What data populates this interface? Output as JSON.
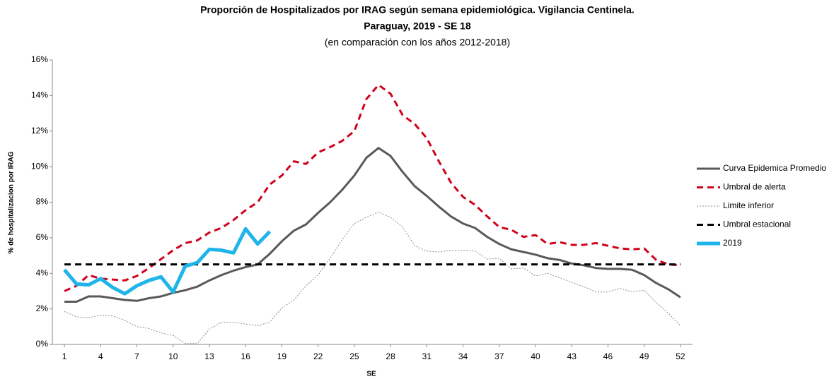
{
  "chart_data": {
    "type": "line",
    "title": "Proporción de Hospitalizados por IRAG según semana epidemiológica. Vigilancia Centinela.",
    "subtitle": "Paraguay,  2019 - SE 18",
    "note": "(en comparación con los años 2012-2018)",
    "x_label": "SE",
    "y_label": "% de hospitalizacion por IRAG",
    "x": [
      1,
      2,
      3,
      4,
      5,
      6,
      7,
      8,
      9,
      10,
      11,
      12,
      13,
      14,
      15,
      16,
      17,
      18,
      19,
      20,
      21,
      22,
      23,
      24,
      25,
      26,
      27,
      28,
      29,
      30,
      31,
      32,
      33,
      34,
      35,
      36,
      37,
      38,
      39,
      40,
      41,
      42,
      43,
      44,
      45,
      46,
      47,
      48,
      49,
      50,
      51,
      52
    ],
    "xlim": [
      0,
      53
    ],
    "xticks": [
      1,
      4,
      7,
      10,
      13,
      16,
      19,
      22,
      25,
      28,
      31,
      34,
      37,
      40,
      43,
      46,
      49,
      52
    ],
    "ylim": [
      0,
      16
    ],
    "yticks": [
      {
        "value": 0,
        "label": "0%"
      },
      {
        "value": 2,
        "label": "2%"
      },
      {
        "value": 4,
        "label": "4%"
      },
      {
        "value": 6,
        "label": "6%"
      },
      {
        "value": 8,
        "label": "8%"
      },
      {
        "value": 10,
        "label": "10%"
      },
      {
        "value": 12,
        "label": "12%"
      },
      {
        "value": 14,
        "label": "14%"
      },
      {
        "value": 16,
        "label": "16%"
      }
    ],
    "grid": false,
    "legend": "right",
    "series": [
      {
        "name": "Curva Epidemica Promedio",
        "color": "#595959",
        "dash": "solid",
        "width": 3,
        "values": [
          2.4,
          2.4,
          2.7,
          2.7,
          2.6,
          2.5,
          2.45,
          2.6,
          2.7,
          2.9,
          3.05,
          3.25,
          3.6,
          3.9,
          4.15,
          4.35,
          4.5,
          5.1,
          5.8,
          6.4,
          6.75,
          7.4,
          8.0,
          8.7,
          9.5,
          10.5,
          11.05,
          10.6,
          9.7,
          8.9,
          8.35,
          7.75,
          7.2,
          6.8,
          6.55,
          6.05,
          5.65,
          5.35,
          5.2,
          5.05,
          4.85,
          4.75,
          4.55,
          4.45,
          4.3,
          4.25,
          4.25,
          4.2,
          3.9,
          3.45,
          3.1,
          2.65
        ]
      },
      {
        "name": "Umbral de alerta",
        "color": "#d0021b",
        "dash": "dashed",
        "width": 3,
        "values": [
          3.0,
          3.3,
          3.9,
          3.7,
          3.65,
          3.6,
          3.85,
          4.3,
          4.8,
          5.3,
          5.7,
          5.85,
          6.3,
          6.55,
          7.0,
          7.55,
          8.0,
          9.0,
          9.5,
          10.3,
          10.15,
          10.8,
          11.1,
          11.45,
          12.0,
          13.8,
          14.6,
          14.1,
          12.9,
          12.4,
          11.6,
          10.3,
          9.1,
          8.3,
          7.85,
          7.2,
          6.6,
          6.45,
          6.05,
          6.15,
          5.65,
          5.75,
          5.6,
          5.6,
          5.7,
          5.55,
          5.4,
          5.35,
          5.4,
          4.75,
          4.5,
          4.45
        ]
      },
      {
        "name": "Limite inferior",
        "color": "#8c8c8c",
        "dash": "dotted",
        "width": 1,
        "values": [
          1.85,
          1.55,
          1.5,
          1.65,
          1.6,
          1.35,
          1.0,
          0.9,
          0.65,
          0.5,
          0.05,
          0.05,
          0.85,
          1.25,
          1.25,
          1.15,
          1.05,
          1.25,
          2.05,
          2.5,
          3.3,
          3.9,
          4.85,
          5.9,
          6.8,
          7.15,
          7.45,
          7.15,
          6.6,
          5.55,
          5.25,
          5.2,
          5.3,
          5.3,
          5.25,
          4.8,
          4.85,
          4.25,
          4.3,
          3.85,
          4.0,
          3.75,
          3.5,
          3.25,
          2.95,
          2.95,
          3.15,
          2.95,
          3.05,
          2.35,
          1.75,
          1.05
        ]
      },
      {
        "name": "Umbral estacional",
        "color": "#000000",
        "dash": "dashed",
        "width": 3,
        "values": [
          4.5,
          4.5,
          4.5,
          4.5,
          4.5,
          4.5,
          4.5,
          4.5,
          4.5,
          4.5,
          4.5,
          4.5,
          4.5,
          4.5,
          4.5,
          4.5,
          4.5,
          4.5,
          4.5,
          4.5,
          4.5,
          4.5,
          4.5,
          4.5,
          4.5,
          4.5,
          4.5,
          4.5,
          4.5,
          4.5,
          4.5,
          4.5,
          4.5,
          4.5,
          4.5,
          4.5,
          4.5,
          4.5,
          4.5,
          4.5,
          4.5,
          4.5,
          4.5,
          4.5,
          4.5,
          4.5,
          4.5,
          4.5,
          4.5,
          4.5,
          4.5,
          4.5
        ]
      },
      {
        "name": "2019",
        "color": "#1fb4ea",
        "dash": "solid",
        "width": 5,
        "values": [
          4.2,
          3.4,
          3.35,
          3.7,
          3.2,
          2.85,
          3.3,
          3.6,
          3.8,
          2.95,
          4.4,
          4.6,
          5.35,
          5.3,
          5.15,
          6.5,
          5.65,
          6.35,
          null,
          null,
          null,
          null,
          null,
          null,
          null,
          null,
          null,
          null,
          null,
          null,
          null,
          null,
          null,
          null,
          null,
          null,
          null,
          null,
          null,
          null,
          null,
          null,
          null,
          null,
          null,
          null,
          null,
          null,
          null,
          null,
          null,
          null
        ]
      }
    ]
  }
}
